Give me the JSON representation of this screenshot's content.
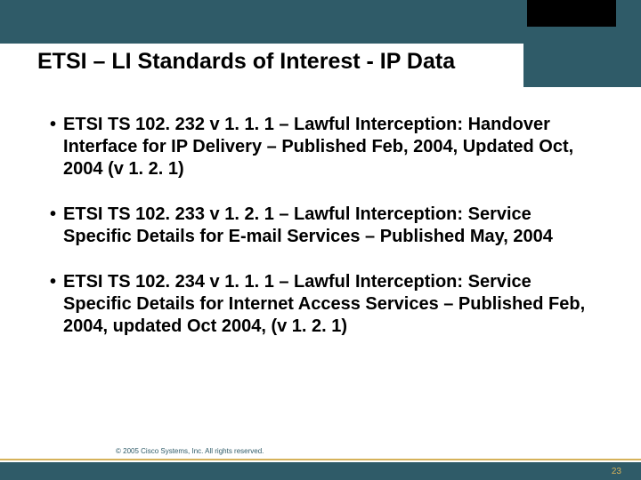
{
  "header": {
    "band_color": "#2f5b68",
    "tab_color": "#000000",
    "title": "ETSI – LI Standards of Interest - IP Data",
    "title_fontsize": 25,
    "title_fontweight": "bold",
    "title_color": "#000000"
  },
  "content": {
    "bullet_color": "#000000",
    "bullet_fontsize": 20,
    "bullet_fontweight": "bold",
    "items": [
      "ETSI TS 102. 232 v 1. 1. 1 – Lawful Interception: Handover Interface for IP Delivery – Published Feb, 2004, Updated Oct, 2004 (v 1. 2. 1)",
      "ETSI TS 102. 233 v 1. 2. 1 – Lawful Interception: Service Specific Details for E-mail Services – Published  May, 2004",
      "ETSI TS 102. 234 v 1. 1. 1 – Lawful Interception: Service Specific Details for Internet Access Services – Published Feb, 2004, updated Oct 2004, (v 1. 2. 1)"
    ]
  },
  "footer": {
    "bar_color": "#2f5b68",
    "accent_color": "#d6b25a",
    "copyright": "© 2005 Cisco Systems, Inc. All rights reserved.",
    "copyright_color": "#2f5b68",
    "copyright_fontsize": 8,
    "page_number": "23",
    "page_number_color": "#d6b25a"
  }
}
